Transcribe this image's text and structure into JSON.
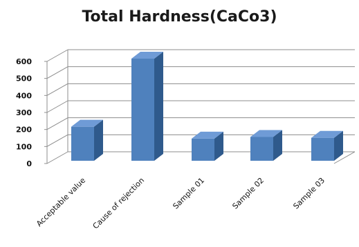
{
  "chart_data": {
    "type": "bar",
    "title": "Total Hardness(CaCo3)",
    "categories": [
      "Acceptable value",
      "Cause of rejection",
      "Sample 01",
      "Sample 02",
      "Sample 03"
    ],
    "values": [
      200,
      600,
      130,
      140,
      135
    ],
    "ylim": [
      0,
      600
    ],
    "yticks": [
      0,
      100,
      200,
      300,
      400,
      500,
      600
    ],
    "grid": true,
    "style": "3d",
    "colors": {
      "bar_front": "#4f81bd",
      "bar_side": "#2f5a8c",
      "bar_top": "#6f9bd6",
      "grid": "#8c8c8c"
    }
  }
}
